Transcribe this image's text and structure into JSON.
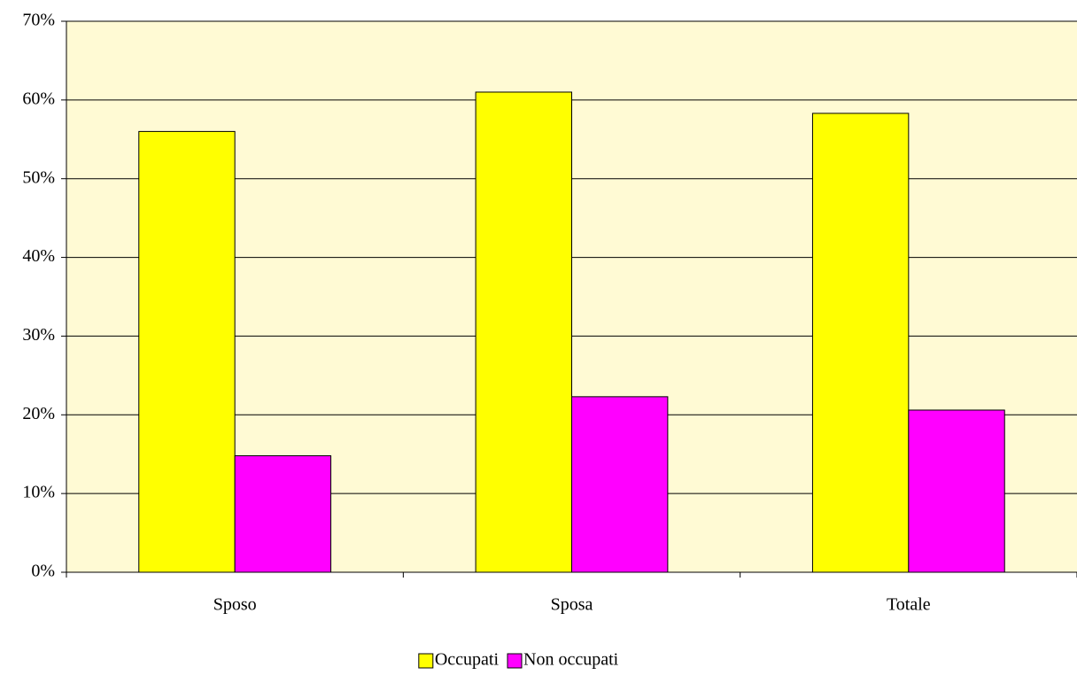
{
  "chart_data": {
    "type": "bar",
    "categories": [
      "Sposo",
      "Sposa",
      "Totale"
    ],
    "series": [
      {
        "name": "Occupati",
        "color": "#ffff00",
        "values": [
          56,
          61,
          58.3
        ]
      },
      {
        "name": "Non occupati",
        "color": "#ff00ff",
        "values": [
          14.8,
          22.3,
          20.6
        ]
      }
    ],
    "ylim": [
      0,
      70
    ],
    "yticks": [
      {
        "value": 0,
        "label": "0%"
      },
      {
        "value": 10,
        "label": "10%"
      },
      {
        "value": 20,
        "label": "20%"
      },
      {
        "value": 30,
        "label": "30%"
      },
      {
        "value": 40,
        "label": "40%"
      },
      {
        "value": 50,
        "label": "50%"
      },
      {
        "value": 60,
        "label": "60%"
      },
      {
        "value": 70,
        "label": "70%"
      }
    ],
    "grid": true,
    "legend": "bottom"
  }
}
